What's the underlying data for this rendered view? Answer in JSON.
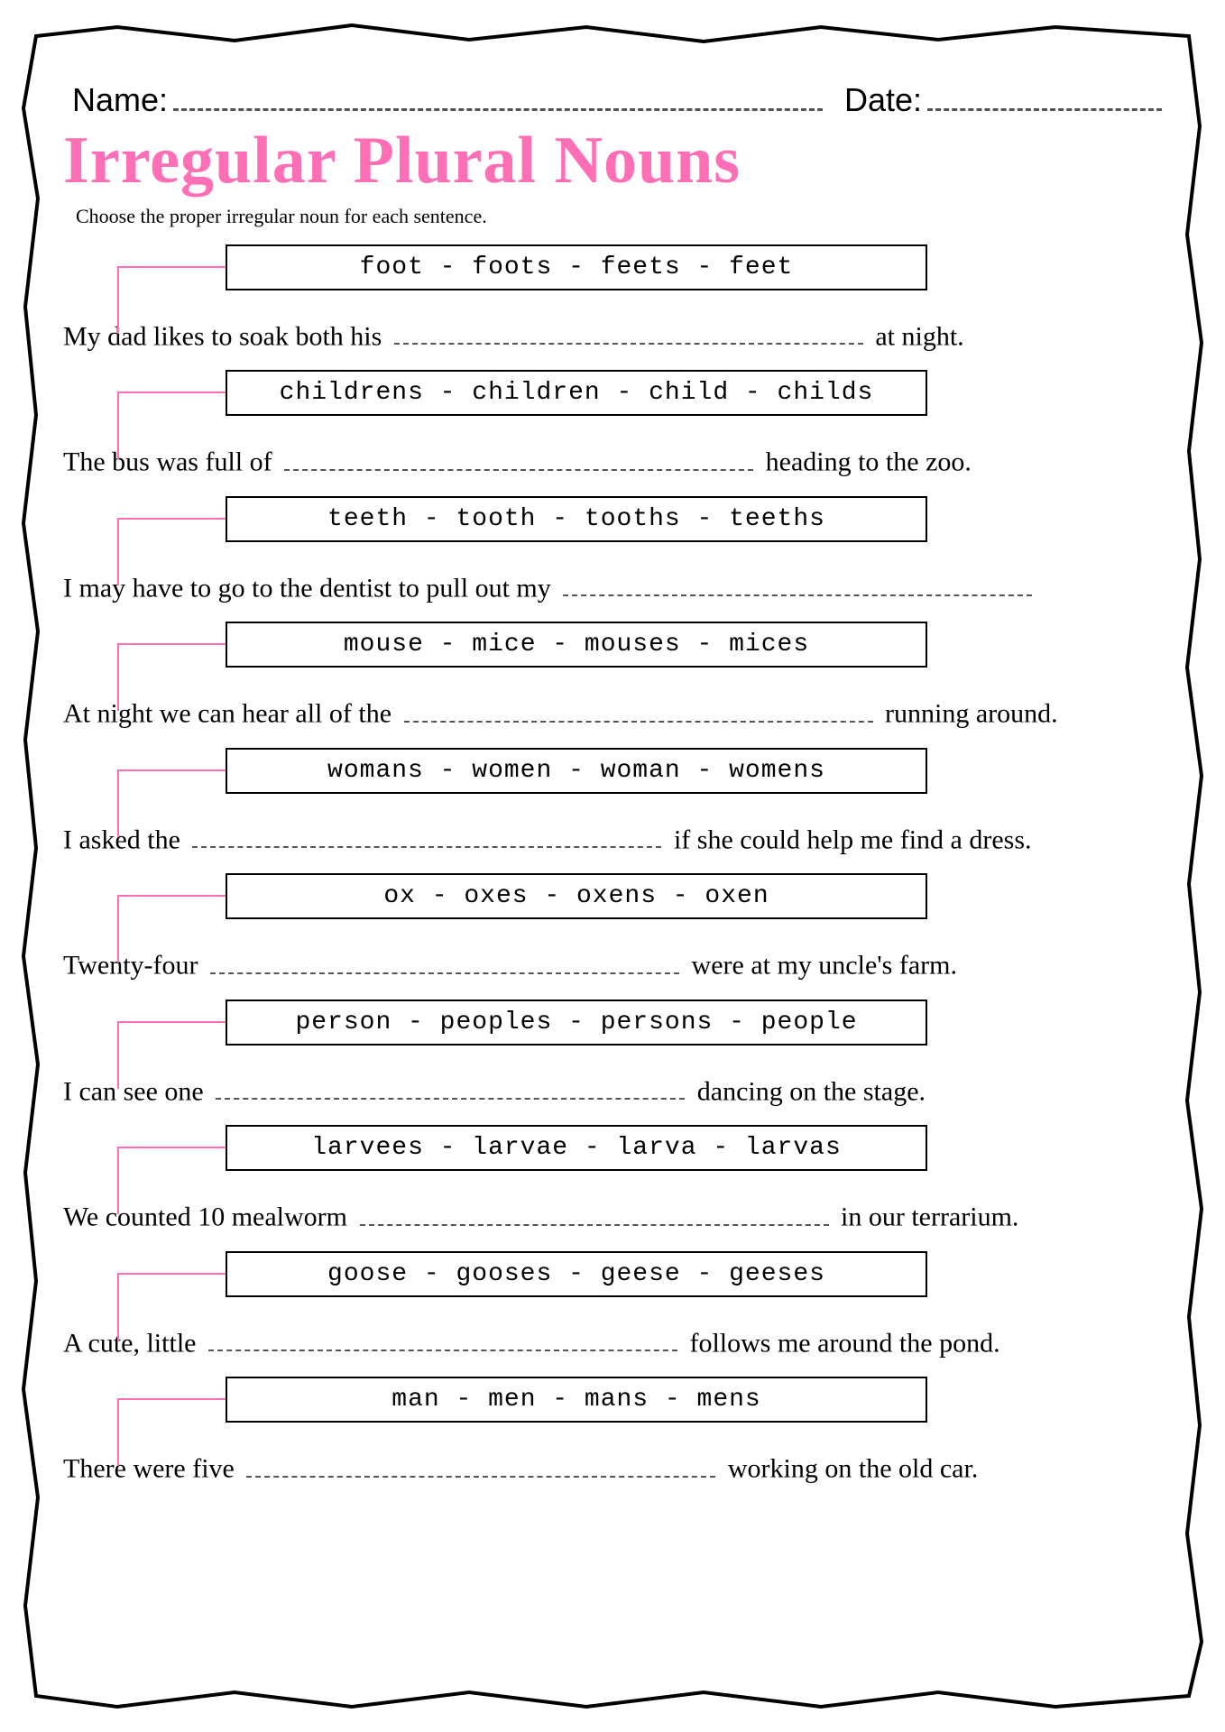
{
  "header": {
    "name_label": "Name:",
    "date_label": "Date:"
  },
  "title": "Irregular Plural Nouns",
  "instructions": "Choose the proper irregular noun for each sentence.",
  "colors": {
    "accent_pink": "#ff6fb5",
    "border_black": "#000000",
    "dash_gray": "#555555",
    "background": "#ffffff"
  },
  "problems": [
    {
      "options": "foot - foots - feets - feet",
      "before": "My dad likes to soak both his ",
      "after": " at night."
    },
    {
      "options": "childrens - children - child - childs",
      "before": "The bus was full of ",
      "after": " heading to the zoo."
    },
    {
      "options": "teeth - tooth - tooths - teeths",
      "before": "I may have to go to the dentist to pull out my ",
      "after": ""
    },
    {
      "options": "mouse - mice - mouses - mices",
      "before": "At night we can hear all of the ",
      "after": " running around."
    },
    {
      "options": "womans - women - woman - womens",
      "before": "I asked the ",
      "after": " if she could help me find a dress."
    },
    {
      "options": "ox - oxes - oxens - oxen",
      "before": "Twenty-four ",
      "after": " were at my uncle's farm."
    },
    {
      "options": "person - peoples - persons - people",
      "before": "I can see one ",
      "after": " dancing on the stage."
    },
    {
      "options": "larvees - larvae - larva - larvas",
      "before": "We counted 10 mealworm ",
      "after": " in our terrarium."
    },
    {
      "options": "goose - gooses - geese - geeses",
      "before": "A cute, little ",
      "after": " follows me around the pond."
    },
    {
      "options": "man - men - mans - mens",
      "before": "There were five ",
      "after": " working on the old car."
    }
  ]
}
